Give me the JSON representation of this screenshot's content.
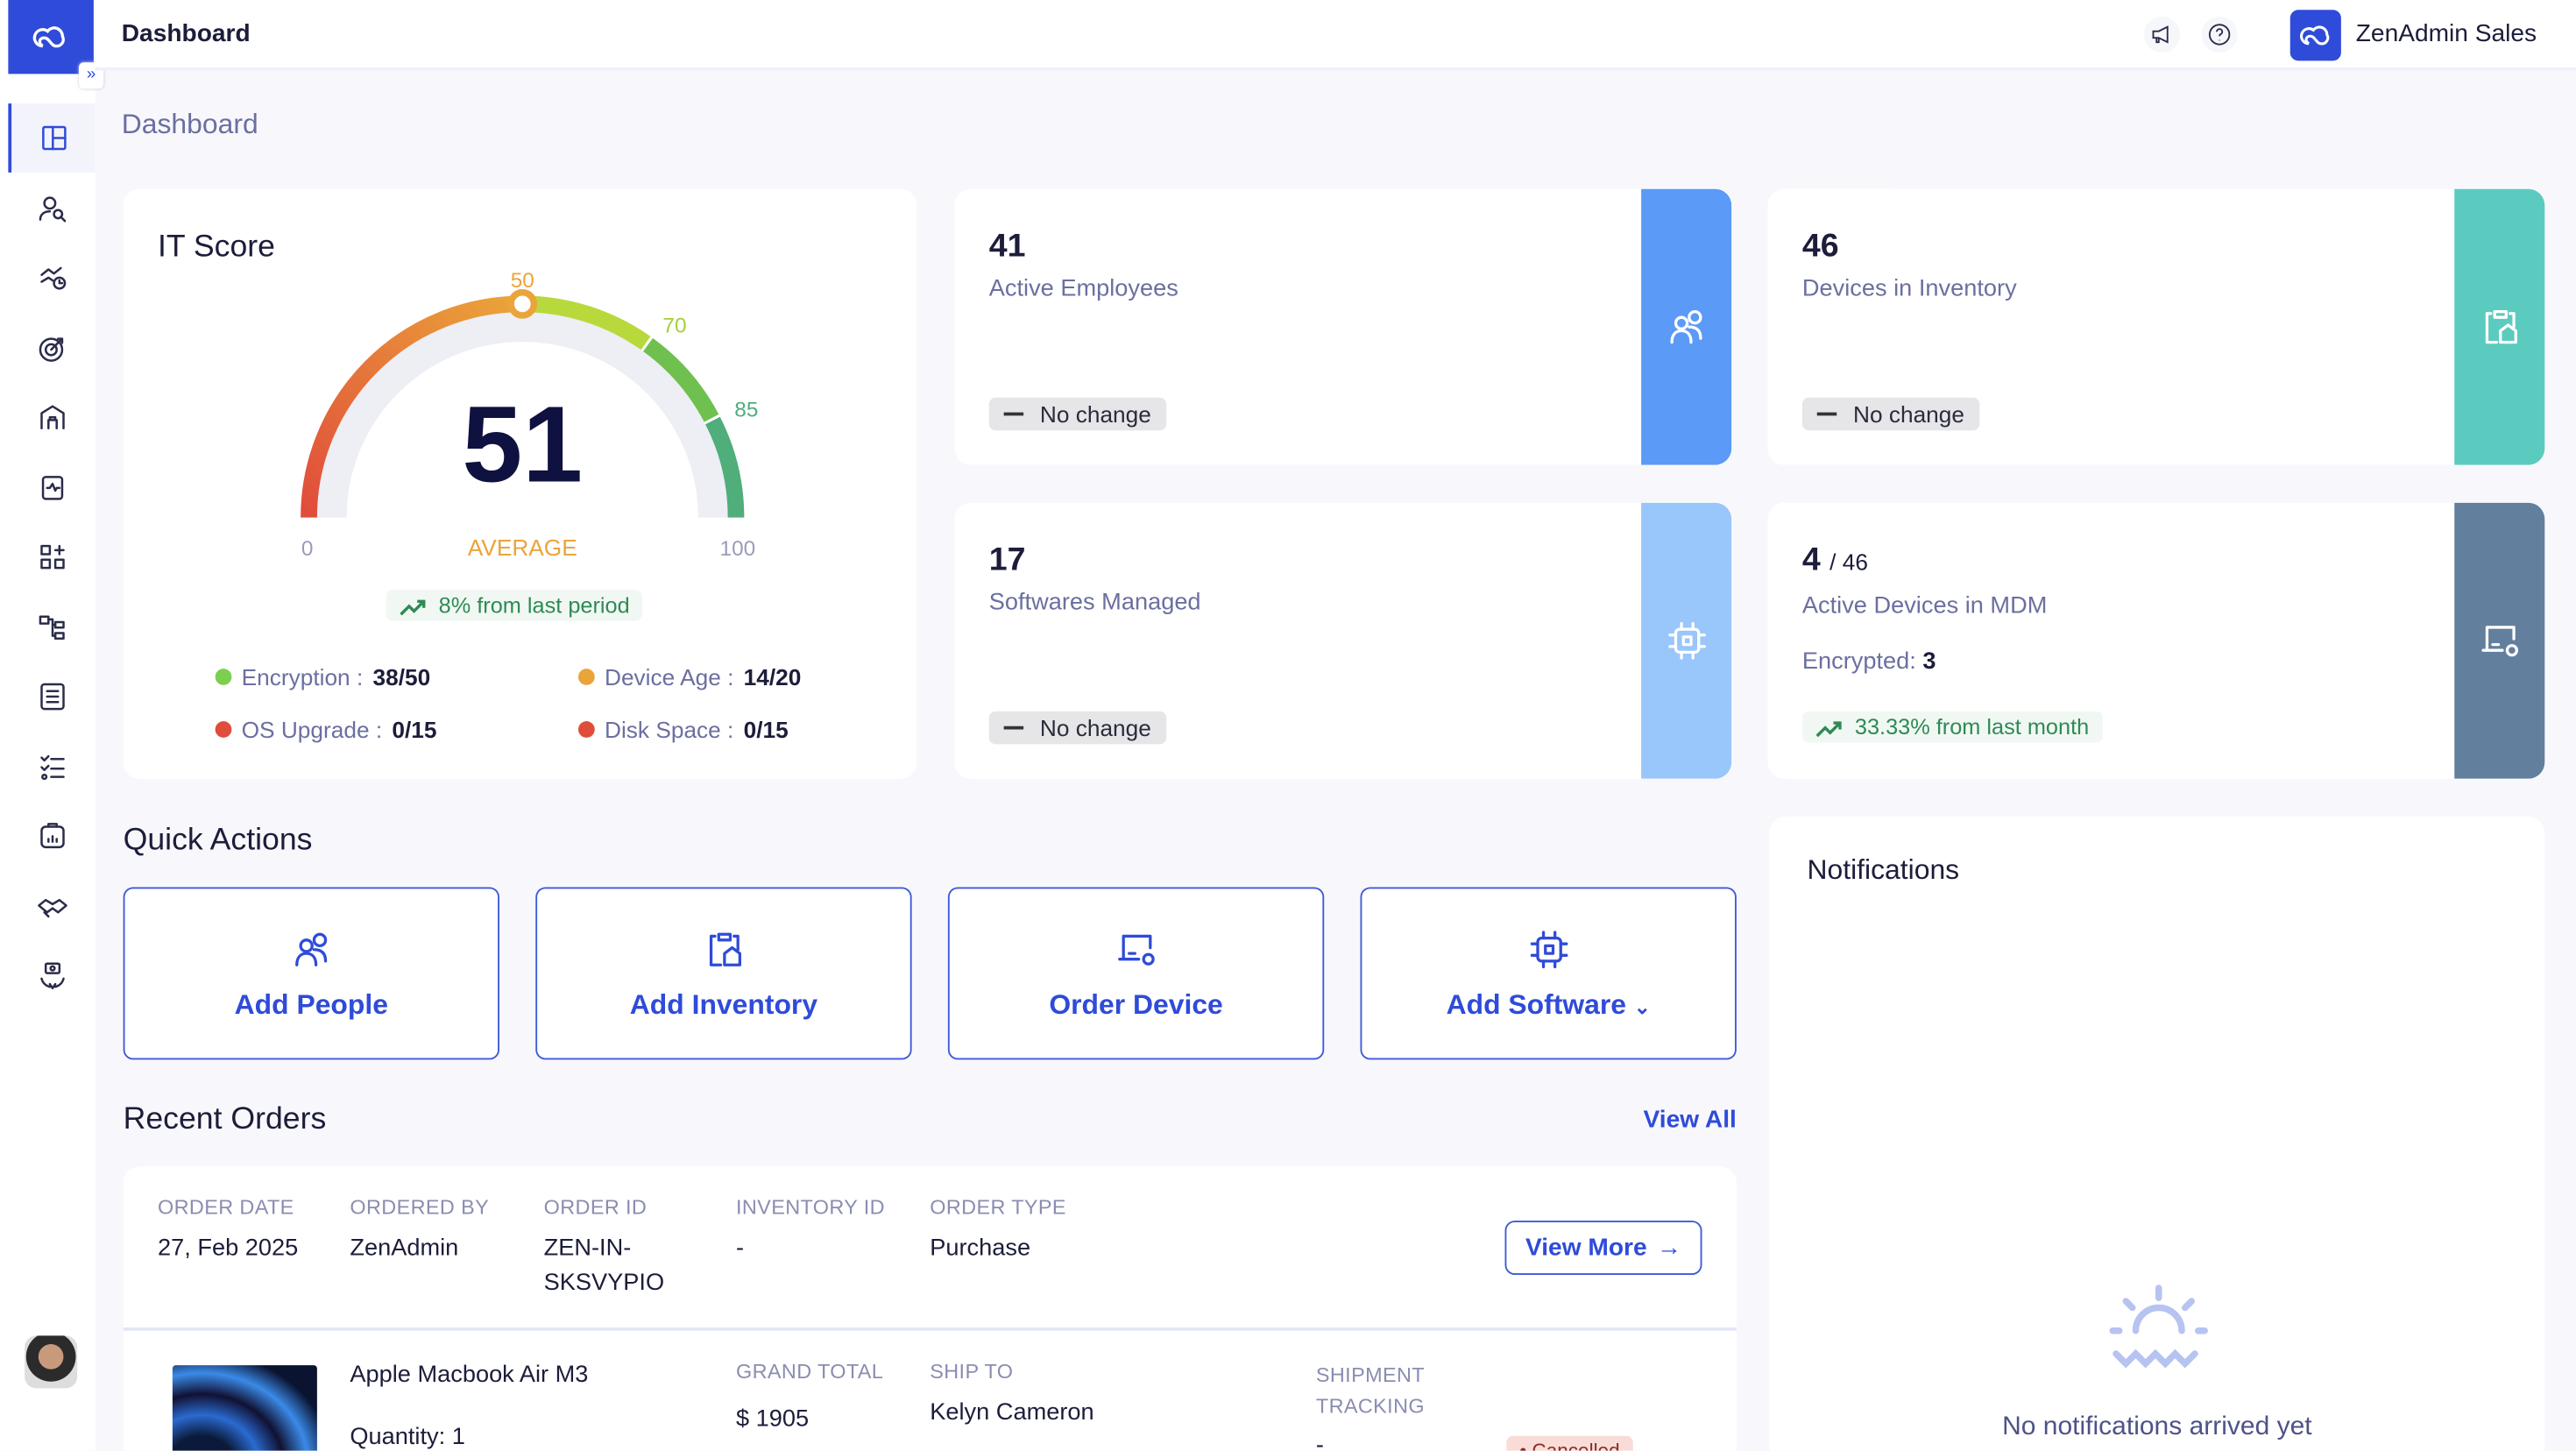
{
  "header": {
    "title": "Dashboard",
    "org_name": "ZenAdmin Sales"
  },
  "sidebar": {
    "expand_label": "»",
    "items": [
      "dashboard",
      "people",
      "workflows",
      "goals",
      "inventory",
      "mdm",
      "apps",
      "org-chart",
      "reports",
      "checklists",
      "analytics",
      "partners",
      "services"
    ]
  },
  "page_title": "Dashboard",
  "it_score": {
    "title": "IT Score",
    "value": 51,
    "min": 0,
    "max": 100,
    "min_label": "0",
    "max_label": "100",
    "value_label": "51",
    "rating": "AVERAGE",
    "thresholds": [
      50,
      70,
      85
    ],
    "threshold_labels": [
      "50",
      "70",
      "85"
    ],
    "trend": "8% from last period",
    "metrics": [
      {
        "label": "Encryption :",
        "value": "38/50",
        "color": "#7ccf4f"
      },
      {
        "label": "Device Age :",
        "value": "14/20",
        "color": "#eba43a"
      },
      {
        "label": "OS Upgrade :",
        "value": "0/15",
        "color": "#e04d3b"
      },
      {
        "label": "Disk Space :",
        "value": "0/15",
        "color": "#e04d3b"
      }
    ]
  },
  "stats": [
    {
      "value": "41",
      "label": "Active Employees",
      "badge": "No change",
      "color": "#5b9af7"
    },
    {
      "value": "46",
      "label": "Devices in Inventory",
      "badge": "No change",
      "color": "#5ccbbf"
    },
    {
      "value": "17",
      "label": "Softwares Managed",
      "badge": "No change",
      "color": "#99c6fb"
    },
    {
      "value": "4",
      "total": "/ 46",
      "label": "Active Devices in MDM",
      "encrypted_label": "Encrypted:",
      "encrypted_value": "3",
      "trend": "33.33% from last month",
      "color": "#637f9e"
    }
  ],
  "quick_actions": {
    "title": "Quick Actions",
    "items": [
      "Add People",
      "Add Inventory",
      "Order Device",
      "Add Software"
    ]
  },
  "recent_orders": {
    "title": "Recent Orders",
    "view_all": "View All",
    "order": {
      "headers": [
        "ORDER DATE",
        "ORDERED BY",
        "ORDER ID",
        "INVENTORY ID",
        "ORDER TYPE"
      ],
      "values": [
        "27, Feb 2025",
        "ZenAdmin",
        "ZEN-IN-SKSVYPIO",
        "-",
        "Purchase"
      ],
      "view_more": "View More",
      "item": {
        "name": "Apple Macbook Air M3",
        "quantity": "Quantity: 1",
        "grand_total_label": "GRAND TOTAL",
        "grand_total": "$ 1905",
        "ship_to_label": "SHIP TO",
        "ship_to": "Kelyn Cameron",
        "tracking_label": "SHIPMENT TRACKING",
        "tracking": "-",
        "status": "Cancelled"
      }
    }
  },
  "notifications": {
    "title": "Notifications",
    "empty": "No notifications arrived yet"
  }
}
